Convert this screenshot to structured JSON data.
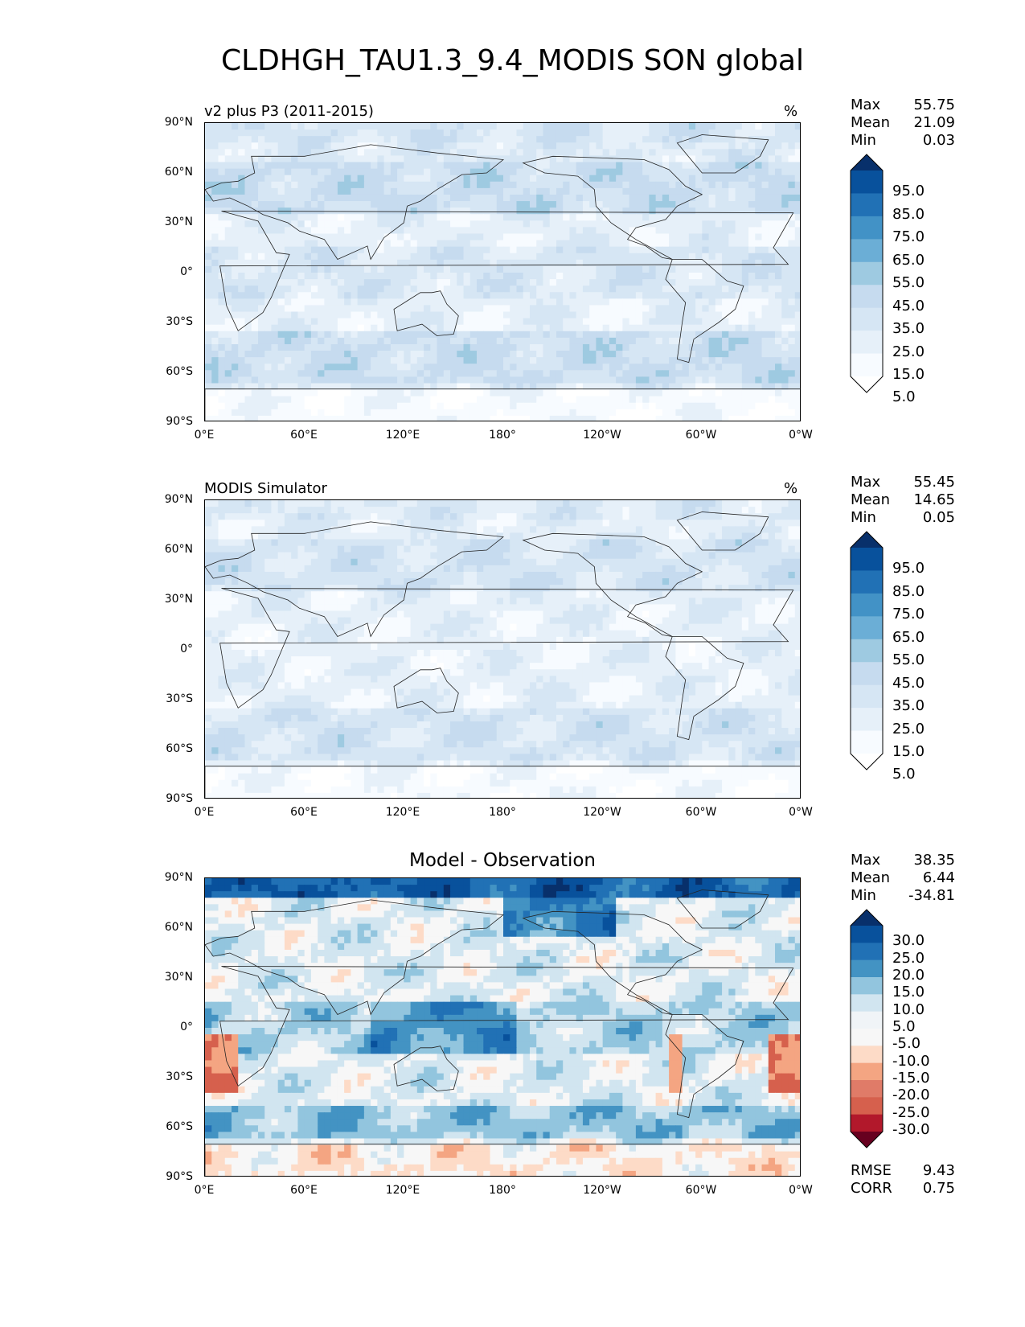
{
  "title": "CLDHGH_TAU1.3_9.4_MODIS SON global",
  "lat_labels": [
    "90°N",
    "60°N",
    "30°N",
    "0°",
    "30°S",
    "60°S",
    "90°S"
  ],
  "lon_labels": [
    "0°E",
    "60°E",
    "120°E",
    "180°",
    "120°W",
    "60°W",
    "0°W"
  ],
  "panels": [
    {
      "title": "v2 plus P3 (2011-2015)",
      "units": "%",
      "stats": {
        "max_label": "Max",
        "max": "55.75",
        "mean_label": "Mean",
        "mean": "21.09",
        "min_label": "Min",
        "min": "0.03"
      },
      "colorbar": {
        "labels": [
          "95.0",
          "85.0",
          "75.0",
          "65.0",
          "55.0",
          "45.0",
          "35.0",
          "25.0",
          "15.0",
          "5.0"
        ],
        "colors": [
          "#08306b",
          "#08519c",
          "#2171b5",
          "#4292c6",
          "#6baed6",
          "#9ecae1",
          "#c6dbef",
          "#d6e6f4",
          "#e6f0f9",
          "#f7fbff",
          "#ffffff"
        ]
      }
    },
    {
      "title": "MODIS Simulator",
      "units": "%",
      "stats": {
        "max_label": "Max",
        "max": "55.45",
        "mean_label": "Mean",
        "mean": "14.65",
        "min_label": "Min",
        "min": "0.05"
      },
      "colorbar": {
        "labels": [
          "95.0",
          "85.0",
          "75.0",
          "65.0",
          "55.0",
          "45.0",
          "35.0",
          "25.0",
          "15.0",
          "5.0"
        ],
        "colors": [
          "#08306b",
          "#08519c",
          "#2171b5",
          "#4292c6",
          "#6baed6",
          "#9ecae1",
          "#c6dbef",
          "#d6e6f4",
          "#e6f0f9",
          "#f7fbff",
          "#ffffff"
        ]
      }
    },
    {
      "title": "Model - Observation",
      "units": "",
      "stats": {
        "max_label": "Max",
        "max": "38.35",
        "mean_label": "Mean",
        "mean": "6.44",
        "min_label": "Min",
        "min": "-34.81"
      },
      "colorbar": {
        "labels": [
          "30.0",
          "25.0",
          "20.0",
          "15.0",
          "10.0",
          "5.0",
          "-5.0",
          "-10.0",
          "-15.0",
          "-20.0",
          "-25.0",
          "-30.0"
        ],
        "colors": [
          "#08306b",
          "#08519c",
          "#2171b5",
          "#4393c3",
          "#92c5de",
          "#d1e5f0",
          "#f0f4f7",
          "#f7f7f7",
          "#fddbc7",
          "#f4a582",
          "#e07b68",
          "#d6604d",
          "#b2182b",
          "#67001f"
        ]
      },
      "rmse_label": "RMSE",
      "rmse": "9.43",
      "corr_label": "CORR",
      "corr": "0.75"
    }
  ]
}
